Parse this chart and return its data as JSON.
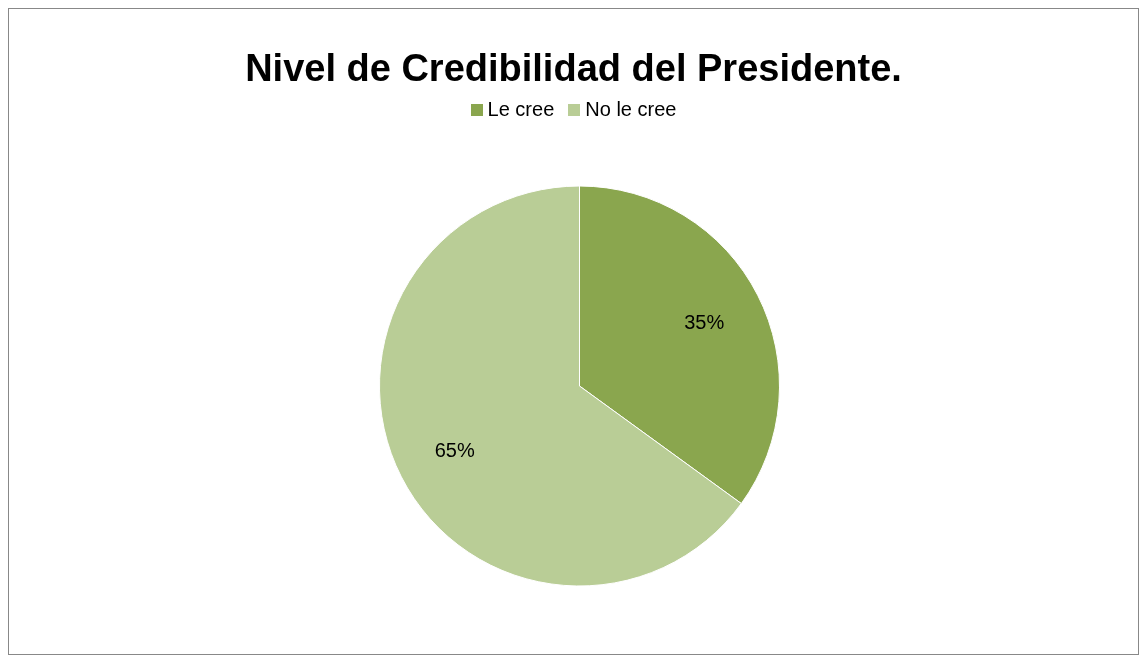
{
  "chart_data": {
    "type": "pie",
    "title": "Nivel de Credibilidad del Presidente.",
    "categories": [
      "Le cree",
      "No le cree"
    ],
    "values": [
      35,
      65
    ],
    "value_labels": [
      "35%",
      "65%"
    ],
    "colors": [
      "#8aa64e",
      "#b9cd96"
    ],
    "legend": "top"
  }
}
